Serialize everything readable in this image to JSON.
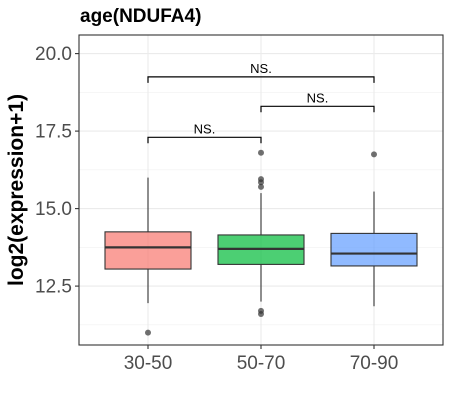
{
  "chart_data": {
    "type": "box",
    "title": "age(NDUFA4)",
    "xlabel": "",
    "ylabel": "log2(expression+1)",
    "ylim": [
      10.6,
      20.6
    ],
    "yticks": [
      12.5,
      15.0,
      17.5,
      20.0
    ],
    "ytick_labels": [
      "12.5",
      "15.0",
      "17.5",
      "20.0"
    ],
    "grid": true,
    "legend": "none",
    "categories": [
      "30-50",
      "50-70",
      "70-90"
    ],
    "boxes": [
      {
        "category": "30-50",
        "q1": 13.05,
        "median": 13.75,
        "q3": 14.25,
        "whisker_low": 11.95,
        "whisker_high": 16.0,
        "outliers": [
          11.0
        ],
        "color": "#F8766D"
      },
      {
        "category": "50-70",
        "q1": 13.2,
        "median": 13.7,
        "q3": 14.15,
        "whisker_low": 12.0,
        "whisker_high": 15.5,
        "outliers": [
          16.8,
          15.95,
          15.85,
          15.7,
          11.7,
          11.6
        ],
        "color": "#00BA38"
      },
      {
        "category": "70-90",
        "q1": 13.15,
        "median": 13.55,
        "q3": 14.2,
        "whisker_low": 11.85,
        "whisker_high": 15.55,
        "outliers": [
          16.75
        ],
        "color": "#619CFF"
      }
    ],
    "comparisons": [
      {
        "from": "30-50",
        "to": "50-70",
        "y": 17.3,
        "label": "NS."
      },
      {
        "from": "50-70",
        "to": "70-90",
        "y": 18.3,
        "label": "NS."
      },
      {
        "from": "30-50",
        "to": "70-90",
        "y": 19.25,
        "label": "NS."
      }
    ]
  }
}
